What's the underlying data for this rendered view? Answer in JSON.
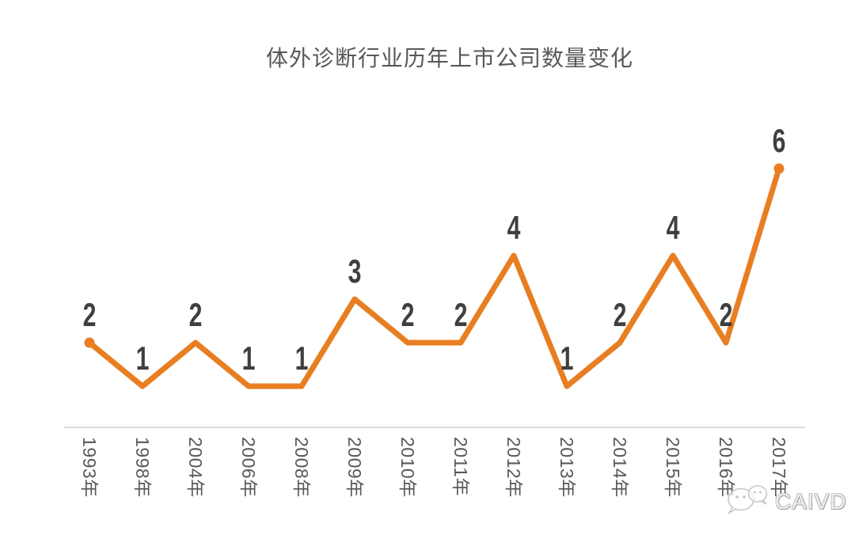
{
  "title": "体外诊断行业历年上市公司数量变化",
  "watermark": {
    "brand": "CAIVD",
    "logo": "wechat-bubbles-icon"
  },
  "chart_data": {
    "type": "line",
    "title": "体外诊断行业历年上市公司数量变化",
    "categories": [
      "1993年",
      "1998年",
      "2004年",
      "2006年",
      "2008年",
      "2009年",
      "2010年",
      "2011年",
      "2012年",
      "2013年",
      "2014年",
      "2015年",
      "2016年",
      "2017年"
    ],
    "values": [
      2,
      1,
      2,
      1,
      1,
      3,
      2,
      2,
      4,
      1,
      2,
      4,
      2,
      6
    ],
    "xlabel": "",
    "ylabel": "",
    "ylim": [
      0,
      7
    ],
    "grid": false,
    "legend": false,
    "data_labels": true,
    "x_tick_rotation_deg": 90,
    "line_color": "#e87e22",
    "marker_color": "#e87e22",
    "data_label_color": "#3f3f3f",
    "axis_line_color": "#dadada",
    "title_color": "#595959",
    "tick_label_color": "#595959"
  }
}
